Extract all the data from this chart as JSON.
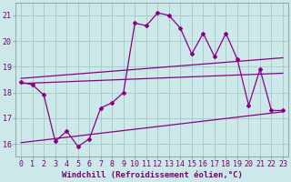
{
  "xlabel": "Windchill (Refroidissement éolien,°C)",
  "ylabel": "",
  "background_color": "#cce8e8",
  "grid_color": "#aacccc",
  "line_color": "#880088",
  "xlim": [
    -0.5,
    23.5
  ],
  "ylim": [
    15.5,
    21.5
  ],
  "yticks": [
    16,
    17,
    18,
    19,
    20,
    21
  ],
  "xticks": [
    0,
    1,
    2,
    3,
    4,
    5,
    6,
    7,
    8,
    9,
    10,
    11,
    12,
    13,
    14,
    15,
    16,
    17,
    18,
    19,
    20,
    21,
    22,
    23
  ],
  "main_x": [
    0,
    1,
    2,
    3,
    4,
    5,
    6,
    7,
    8,
    9,
    10,
    11,
    12,
    13,
    14,
    15,
    16,
    17,
    18,
    19,
    20,
    21,
    22,
    23
  ],
  "main_y": [
    18.4,
    18.3,
    17.9,
    16.1,
    16.5,
    15.9,
    16.2,
    17.4,
    17.6,
    18.0,
    20.7,
    20.6,
    21.1,
    21.0,
    20.5,
    19.5,
    20.3,
    19.4,
    20.3,
    19.3,
    17.5,
    18.9,
    17.3,
    17.3
  ],
  "upper_line_x": [
    0,
    23
  ],
  "upper_line_y": [
    18.55,
    19.35
  ],
  "mid_line_x": [
    0,
    23
  ],
  "mid_line_y": [
    18.35,
    18.75
  ],
  "lower_line_x": [
    0,
    23
  ],
  "lower_line_y": [
    16.05,
    17.25
  ],
  "font_size_label": 6.5,
  "font_size_tick": 6.0,
  "line_width": 0.9,
  "marker": "D",
  "marker_size": 2.0
}
